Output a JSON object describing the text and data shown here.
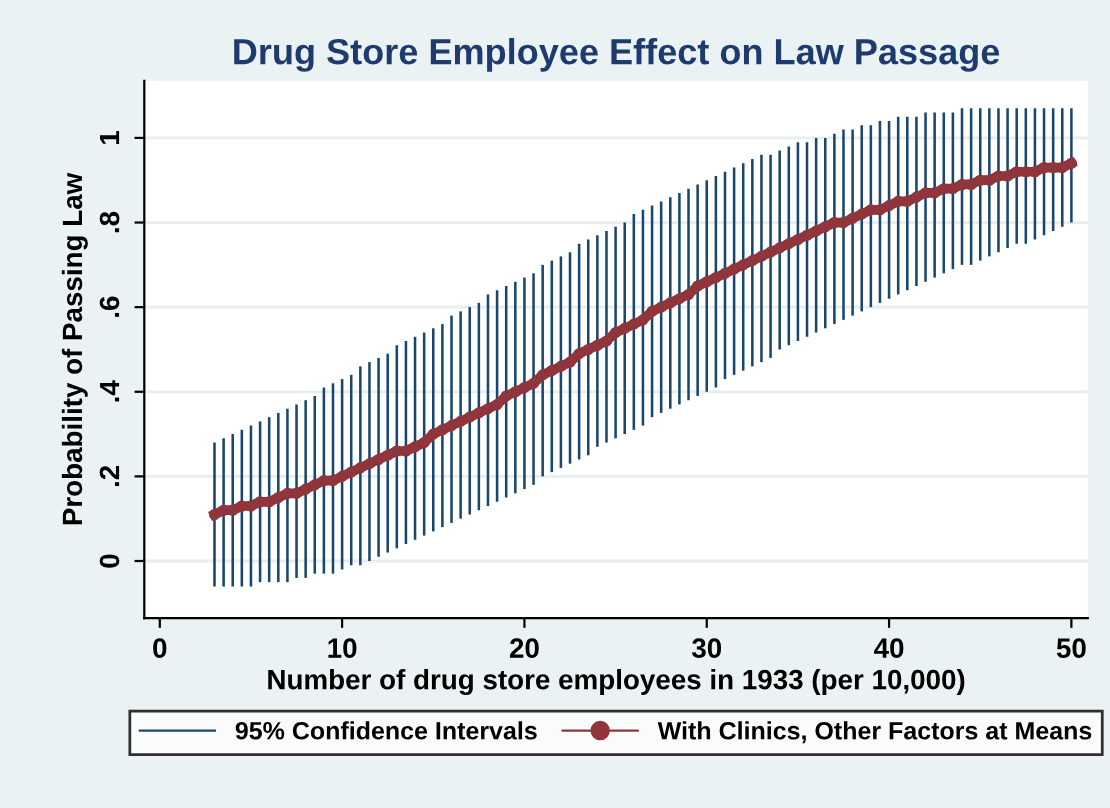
{
  "chart_data": {
    "type": "line",
    "title": "Drug Store Employee Effect on Law Passage",
    "xlabel": "Number of drug store employees in 1933 (per 10,000)",
    "ylabel": "Probability of Passing Law",
    "xlim": [
      -0.85,
      50.9
    ],
    "ylim": [
      -0.135,
      1.135
    ],
    "xticks": [
      0,
      10,
      20,
      30,
      40,
      50
    ],
    "yticks": [
      0,
      {
        "value": 0.2,
        "label": ".2"
      },
      {
        "value": 0.4,
        "label": ".4"
      },
      {
        "value": 0.6,
        "label": ".6"
      },
      {
        "value": 0.8,
        "label": ".8"
      },
      1
    ],
    "grid": "y",
    "legend": "bottom",
    "x": [
      3,
      3.5,
      4,
      4.5,
      5,
      5.5,
      6,
      6.5,
      7,
      7.5,
      8,
      8.5,
      9,
      9.5,
      10,
      10.5,
      11,
      11.5,
      12,
      12.5,
      13,
      13.5,
      14,
      14.5,
      15,
      15.5,
      16,
      16.5,
      17,
      17.5,
      18,
      18.5,
      19,
      19.5,
      20,
      20.5,
      21,
      21.5,
      22,
      22.5,
      23,
      23.5,
      24,
      24.5,
      25,
      25.5,
      26,
      26.5,
      27,
      27.5,
      28,
      28.5,
      29,
      29.5,
      30,
      30.5,
      31,
      31.5,
      32,
      32.5,
      33,
      33.5,
      34,
      34.5,
      35,
      35.5,
      36,
      36.5,
      37,
      37.5,
      38,
      38.5,
      39,
      39.5,
      40,
      40.5,
      41,
      41.5,
      42,
      42.5,
      43,
      43.5,
      44,
      44.5,
      45,
      45.5,
      46,
      46.5,
      47,
      47.5,
      48,
      48.5,
      49,
      49.5,
      50
    ],
    "series": [
      {
        "name": "95% Confidence Intervals",
        "type": "bar",
        "color": "#1a476f",
        "base": [
          -0.06,
          -0.06,
          -0.06,
          -0.06,
          -0.06,
          -0.05,
          -0.05,
          -0.05,
          -0.05,
          -0.04,
          -0.04,
          -0.03,
          -0.03,
          -0.03,
          -0.02,
          -0.01,
          -0.01,
          0.0,
          0.01,
          0.02,
          0.03,
          0.04,
          0.05,
          0.06,
          0.07,
          0.08,
          0.09,
          0.1,
          0.11,
          0.12,
          0.13,
          0.14,
          0.15,
          0.16,
          0.17,
          0.18,
          0.2,
          0.21,
          0.22,
          0.23,
          0.24,
          0.25,
          0.27,
          0.28,
          0.29,
          0.3,
          0.31,
          0.32,
          0.34,
          0.35,
          0.36,
          0.37,
          0.38,
          0.39,
          0.4,
          0.41,
          0.43,
          0.44,
          0.45,
          0.46,
          0.47,
          0.48,
          0.5,
          0.51,
          0.52,
          0.53,
          0.54,
          0.55,
          0.56,
          0.57,
          0.58,
          0.59,
          0.6,
          0.61,
          0.62,
          0.63,
          0.64,
          0.65,
          0.66,
          0.67,
          0.68,
          0.69,
          0.7,
          0.7,
          0.71,
          0.72,
          0.73,
          0.74,
          0.75,
          0.75,
          0.76,
          0.77,
          0.78,
          0.79,
          0.8
        ],
        "values": [
          0.34,
          0.35,
          0.36,
          0.37,
          0.38,
          0.38,
          0.39,
          0.4,
          0.41,
          0.41,
          0.42,
          0.42,
          0.44,
          0.45,
          0.45,
          0.45,
          0.47,
          0.47,
          0.47,
          0.47,
          0.48,
          0.48,
          0.48,
          0.48,
          0.48,
          0.48,
          0.49,
          0.49,
          0.49,
          0.49,
          0.5,
          0.5,
          0.5,
          0.5,
          0.5,
          0.5,
          0.5,
          0.5,
          0.5,
          0.5,
          0.51,
          0.51,
          0.5,
          0.5,
          0.5,
          0.5,
          0.51,
          0.51,
          0.5,
          0.5,
          0.5,
          0.5,
          0.5,
          0.5,
          0.5,
          0.5,
          0.49,
          0.49,
          0.49,
          0.49,
          0.49,
          0.48,
          0.47,
          0.47,
          0.47,
          0.46,
          0.46,
          0.45,
          0.45,
          0.45,
          0.44,
          0.44,
          0.43,
          0.43,
          0.42,
          0.42,
          0.41,
          0.4,
          0.4,
          0.39,
          0.38,
          0.37,
          0.37,
          0.37,
          0.36,
          0.35,
          0.34,
          0.33,
          0.32,
          0.32,
          0.31,
          0.3,
          0.29,
          0.28,
          0.27
        ]
      },
      {
        "name": "With Clinics, Other Factors at Means",
        "color": "#90353b",
        "marker": "circle",
        "line_style": "solid",
        "values": [
          0.11,
          0.12,
          0.12,
          0.13,
          0.13,
          0.14,
          0.14,
          0.15,
          0.16,
          0.16,
          0.17,
          0.18,
          0.19,
          0.19,
          0.2,
          0.21,
          0.22,
          0.23,
          0.24,
          0.25,
          0.26,
          0.26,
          0.27,
          0.28,
          0.3,
          0.31,
          0.32,
          0.33,
          0.34,
          0.35,
          0.36,
          0.37,
          0.39,
          0.4,
          0.41,
          0.42,
          0.44,
          0.45,
          0.46,
          0.47,
          0.49,
          0.5,
          0.51,
          0.52,
          0.54,
          0.55,
          0.56,
          0.57,
          0.59,
          0.6,
          0.61,
          0.62,
          0.63,
          0.65,
          0.66,
          0.67,
          0.68,
          0.69,
          0.7,
          0.71,
          0.72,
          0.73,
          0.74,
          0.75,
          0.76,
          0.77,
          0.78,
          0.79,
          0.8,
          0.8,
          0.81,
          0.82,
          0.83,
          0.83,
          0.84,
          0.85,
          0.85,
          0.86,
          0.87,
          0.87,
          0.88,
          0.88,
          0.89,
          0.89,
          0.9,
          0.9,
          0.91,
          0.91,
          0.92,
          0.92,
          0.92,
          0.93,
          0.93,
          0.93,
          0.94
        ]
      }
    ]
  }
}
